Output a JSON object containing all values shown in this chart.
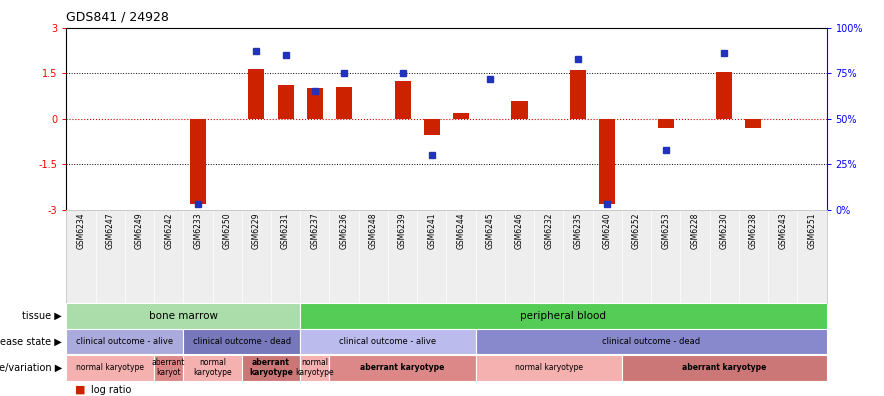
{
  "title": "GDS841 / 24928",
  "samples": [
    "GSM6234",
    "GSM6247",
    "GSM6249",
    "GSM6242",
    "GSM6233",
    "GSM6250",
    "GSM6229",
    "GSM6231",
    "GSM6237",
    "GSM6236",
    "GSM6248",
    "GSM6239",
    "GSM6241",
    "GSM6244",
    "GSM6245",
    "GSM6246",
    "GSM6232",
    "GSM6235",
    "GSM6240",
    "GSM6252",
    "GSM6253",
    "GSM6228",
    "GSM6230",
    "GSM6238",
    "GSM6243",
    "GSM6251"
  ],
  "log_ratio": [
    0,
    0,
    0,
    0,
    -2.8,
    0,
    1.65,
    1.1,
    1.0,
    1.05,
    0,
    1.25,
    -0.55,
    0.2,
    0,
    0.6,
    0,
    1.6,
    -2.8,
    0,
    -0.3,
    0,
    1.55,
    -0.3,
    0,
    0
  ],
  "percentile": [
    null,
    null,
    null,
    null,
    3,
    null,
    87,
    85,
    65,
    75,
    null,
    75,
    30,
    null,
    72,
    null,
    null,
    83,
    3,
    null,
    33,
    null,
    86,
    null,
    null,
    null
  ],
  "ylim": [
    -3,
    3
  ],
  "y_left_ticks": [
    -3,
    -1.5,
    0,
    1.5,
    3
  ],
  "y_right_ticks": [
    0,
    25,
    50,
    75,
    100
  ],
  "dotted_lines": [
    -1.5,
    1.5
  ],
  "zero_line_color": "#cc0000",
  "bar_color": "#cc2200",
  "dot_color": "#2233bb",
  "tissue_groups": [
    {
      "label": "bone marrow",
      "start": 0,
      "end": 8,
      "color": "#aaddaa"
    },
    {
      "label": "peripheral blood",
      "start": 8,
      "end": 26,
      "color": "#55cc55"
    }
  ],
  "disease_groups": [
    {
      "label": "clinical outcome - alive",
      "start": 0,
      "end": 4,
      "color": "#aaaadd"
    },
    {
      "label": "clinical outcome - dead",
      "start": 4,
      "end": 8,
      "color": "#7777bb"
    },
    {
      "label": "clinical outcome - alive",
      "start": 8,
      "end": 14,
      "color": "#bbbbee"
    },
    {
      "label": "clinical outcome - dead",
      "start": 14,
      "end": 26,
      "color": "#8888cc"
    }
  ],
  "geno_groups": [
    {
      "label": "normal karyotype",
      "start": 0,
      "end": 3,
      "color": "#f5b0b0"
    },
    {
      "label": "aberrant\nkaryot",
      "start": 3,
      "end": 4,
      "color": "#dd8888"
    },
    {
      "label": "normal\nkaryotype",
      "start": 4,
      "end": 6,
      "color": "#f5b0b0"
    },
    {
      "label": "aberrant\nkaryotype",
      "start": 6,
      "end": 8,
      "color": "#cc7777"
    },
    {
      "label": "normal\nkaryotype",
      "start": 8,
      "end": 9,
      "color": "#f5b0b0"
    },
    {
      "label": "aberrant karyotype",
      "start": 9,
      "end": 14,
      "color": "#dd8888"
    },
    {
      "label": "normal karyotype",
      "start": 14,
      "end": 19,
      "color": "#f5b0b0"
    },
    {
      "label": "aberrant karyotype",
      "start": 19,
      "end": 26,
      "color": "#cc7777"
    }
  ],
  "background_color": "#ffffff"
}
